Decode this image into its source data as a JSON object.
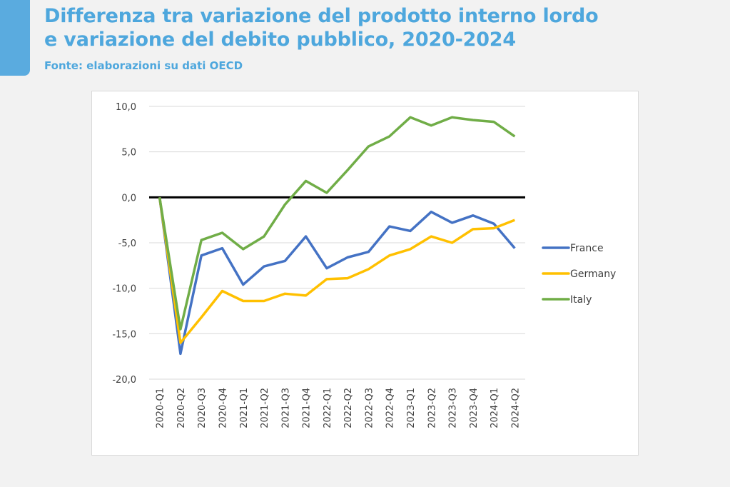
{
  "header": {
    "title_line1": "Differenza tra variazione del prodotto interno lordo",
    "title_line2": "e variazione del debito pubblico, 2020-2024",
    "source": "Fonte: elaborazioni su dati OECD"
  },
  "chart_data": {
    "type": "line",
    "title": "Differenza tra variazione del prodotto interno lordo e variazione del debito pubblico, 2020-2024",
    "xlabel": "",
    "ylabel": "",
    "ylim": [
      -20,
      10
    ],
    "yticks": [
      10,
      5,
      0,
      -5,
      -10,
      -15,
      -20
    ],
    "ytick_labels": [
      "10,0",
      "5,0",
      "0,0",
      "-5,0",
      "-10,0",
      "-15,0",
      "-20,0"
    ],
    "grid": true,
    "legend_position": "right",
    "categories": [
      "2020-Q1",
      "2020-Q2",
      "2020-Q3",
      "2020-Q4",
      "2021-Q1",
      "2021-Q2",
      "2021-Q3",
      "2021-Q4",
      "2022-Q1",
      "2022-Q2",
      "2022-Q3",
      "2022-Q4",
      "2023-Q1",
      "2023-Q2",
      "2023-Q3",
      "2023-Q4",
      "2024-Q1",
      "2024-Q2"
    ],
    "series": [
      {
        "name": "France",
        "color": "#4472c4",
        "values": [
          0,
          -17.2,
          -6.4,
          -5.6,
          -9.6,
          -7.6,
          -7.0,
          -4.3,
          -7.8,
          -6.6,
          -6.0,
          -3.2,
          -3.7,
          -1.6,
          -2.8,
          -2.0,
          -2.9,
          -5.6
        ]
      },
      {
        "name": "Germany",
        "color": "#ffc000",
        "values": [
          0,
          -16.0,
          -13.2,
          -10.3,
          -11.4,
          -11.4,
          -10.6,
          -10.8,
          -9.0,
          -8.9,
          -7.9,
          -6.4,
          -5.7,
          -4.3,
          -5.0,
          -3.5,
          -3.4,
          -2.5
        ]
      },
      {
        "name": "Italy",
        "color": "#70ad47",
        "values": [
          0,
          -14.5,
          -4.7,
          -3.9,
          -5.7,
          -4.3,
          -0.8,
          1.8,
          0.5,
          3.0,
          5.6,
          6.7,
          8.8,
          7.9,
          8.8,
          8.5,
          8.3,
          6.7
        ]
      }
    ]
  }
}
